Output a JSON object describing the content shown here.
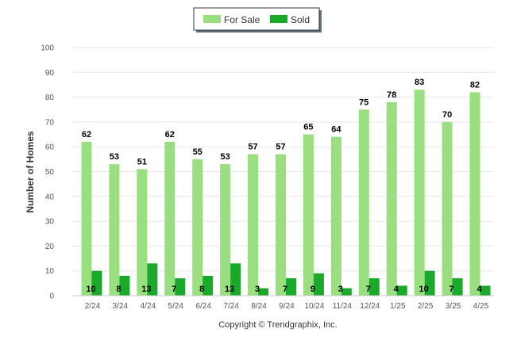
{
  "chart_data": {
    "type": "bar",
    "categories": [
      "2/24",
      "3/24",
      "4/24",
      "5/24",
      "6/24",
      "7/24",
      "8/24",
      "9/24",
      "10/24",
      "11/24",
      "12/24",
      "1/25",
      "2/25",
      "3/25",
      "4/25"
    ],
    "series": [
      {
        "name": "For Sale",
        "color": "#99df7f",
        "values": [
          62,
          53,
          51,
          62,
          55,
          53,
          57,
          57,
          65,
          64,
          75,
          78,
          83,
          70,
          82
        ]
      },
      {
        "name": "Sold",
        "color": "#1aa92a",
        "values": [
          10,
          8,
          13,
          7,
          8,
          13,
          3,
          7,
          9,
          3,
          7,
          4,
          10,
          7,
          4
        ]
      }
    ],
    "title": "",
    "xlabel": "",
    "ylabel": "Number of Homes",
    "ylim": [
      0,
      100
    ],
    "yticks": [
      0,
      10,
      20,
      30,
      40,
      50,
      60,
      70,
      80,
      90,
      100
    ],
    "grid": true,
    "legend": "top-center",
    "data_labels": true
  },
  "footer": {
    "copyright": "Copyright © Trendgraphix, Inc."
  }
}
